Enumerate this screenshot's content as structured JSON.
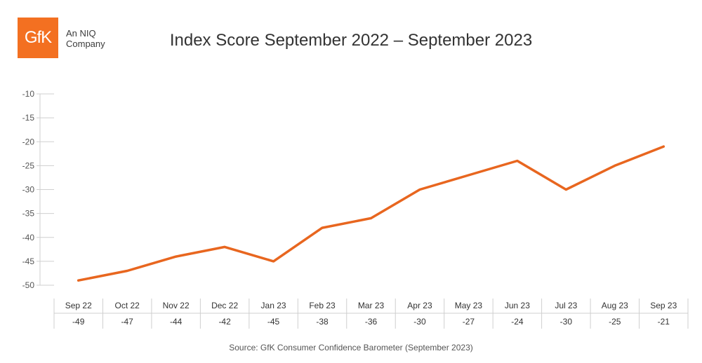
{
  "logo": {
    "text": "GfK",
    "subtitle": "An NIQ Company"
  },
  "title": "Index Score September 2022 – September 2023",
  "source": "Source: GfK Consumer Confidence Barometer (September 2023)",
  "colors": {
    "line": "#e8661f",
    "grid": "#cfcfcf",
    "brand": "#f37021"
  },
  "chart_data": {
    "type": "line",
    "title": "Index Score September 2022 – September 2023",
    "categories": [
      "Sep 22",
      "Oct 22",
      "Nov 22",
      "Dec 22",
      "Jan 23",
      "Feb 23",
      "Mar 23",
      "Apr 23",
      "May 23",
      "Jun 23",
      "Jul 23",
      "Aug 23",
      "Sep 23"
    ],
    "series": [
      {
        "values": [
          -49,
          -47,
          -44,
          -42,
          -45,
          -38,
          -36,
          -30,
          -27,
          -24,
          -30,
          -25,
          -21
        ]
      }
    ],
    "value_labels": [
      "-49",
      "-47",
      "-44",
      "-42",
      "-45",
      "-38",
      "-36",
      "-30",
      "-27",
      "-24",
      "-30",
      "-25",
      "-21"
    ],
    "yticks": [
      "-10",
      "-15",
      "-20",
      "-25",
      "-30",
      "-35",
      "-40",
      "-45",
      "-50"
    ],
    "ylim": [
      -50,
      -10
    ],
    "xlabel": "",
    "ylabel": "",
    "grid": false,
    "legend": "none"
  }
}
